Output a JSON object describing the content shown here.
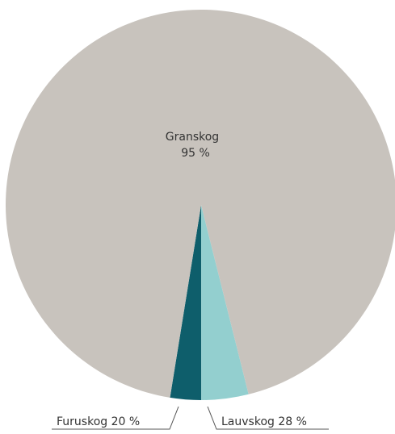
{
  "chart_data": {
    "type": "pie",
    "slices": [
      {
        "name": "Granskog",
        "value_label": "95 %",
        "share": 0.9355,
        "color": "#c8c3bd"
      },
      {
        "name": "Lauvskog",
        "value_label": "28 %",
        "share": 0.0389,
        "color": "#93cfcf"
      },
      {
        "name": "Furuskog",
        "value_label": "20 %",
        "share": 0.0256,
        "color": "#0e5e6b"
      }
    ],
    "labels": {
      "granskog_name": "Granskog",
      "granskog_value": "95 %",
      "lauvskog": "Lauvskog 28 %",
      "furuskog": "Furuskog 20 %"
    }
  }
}
